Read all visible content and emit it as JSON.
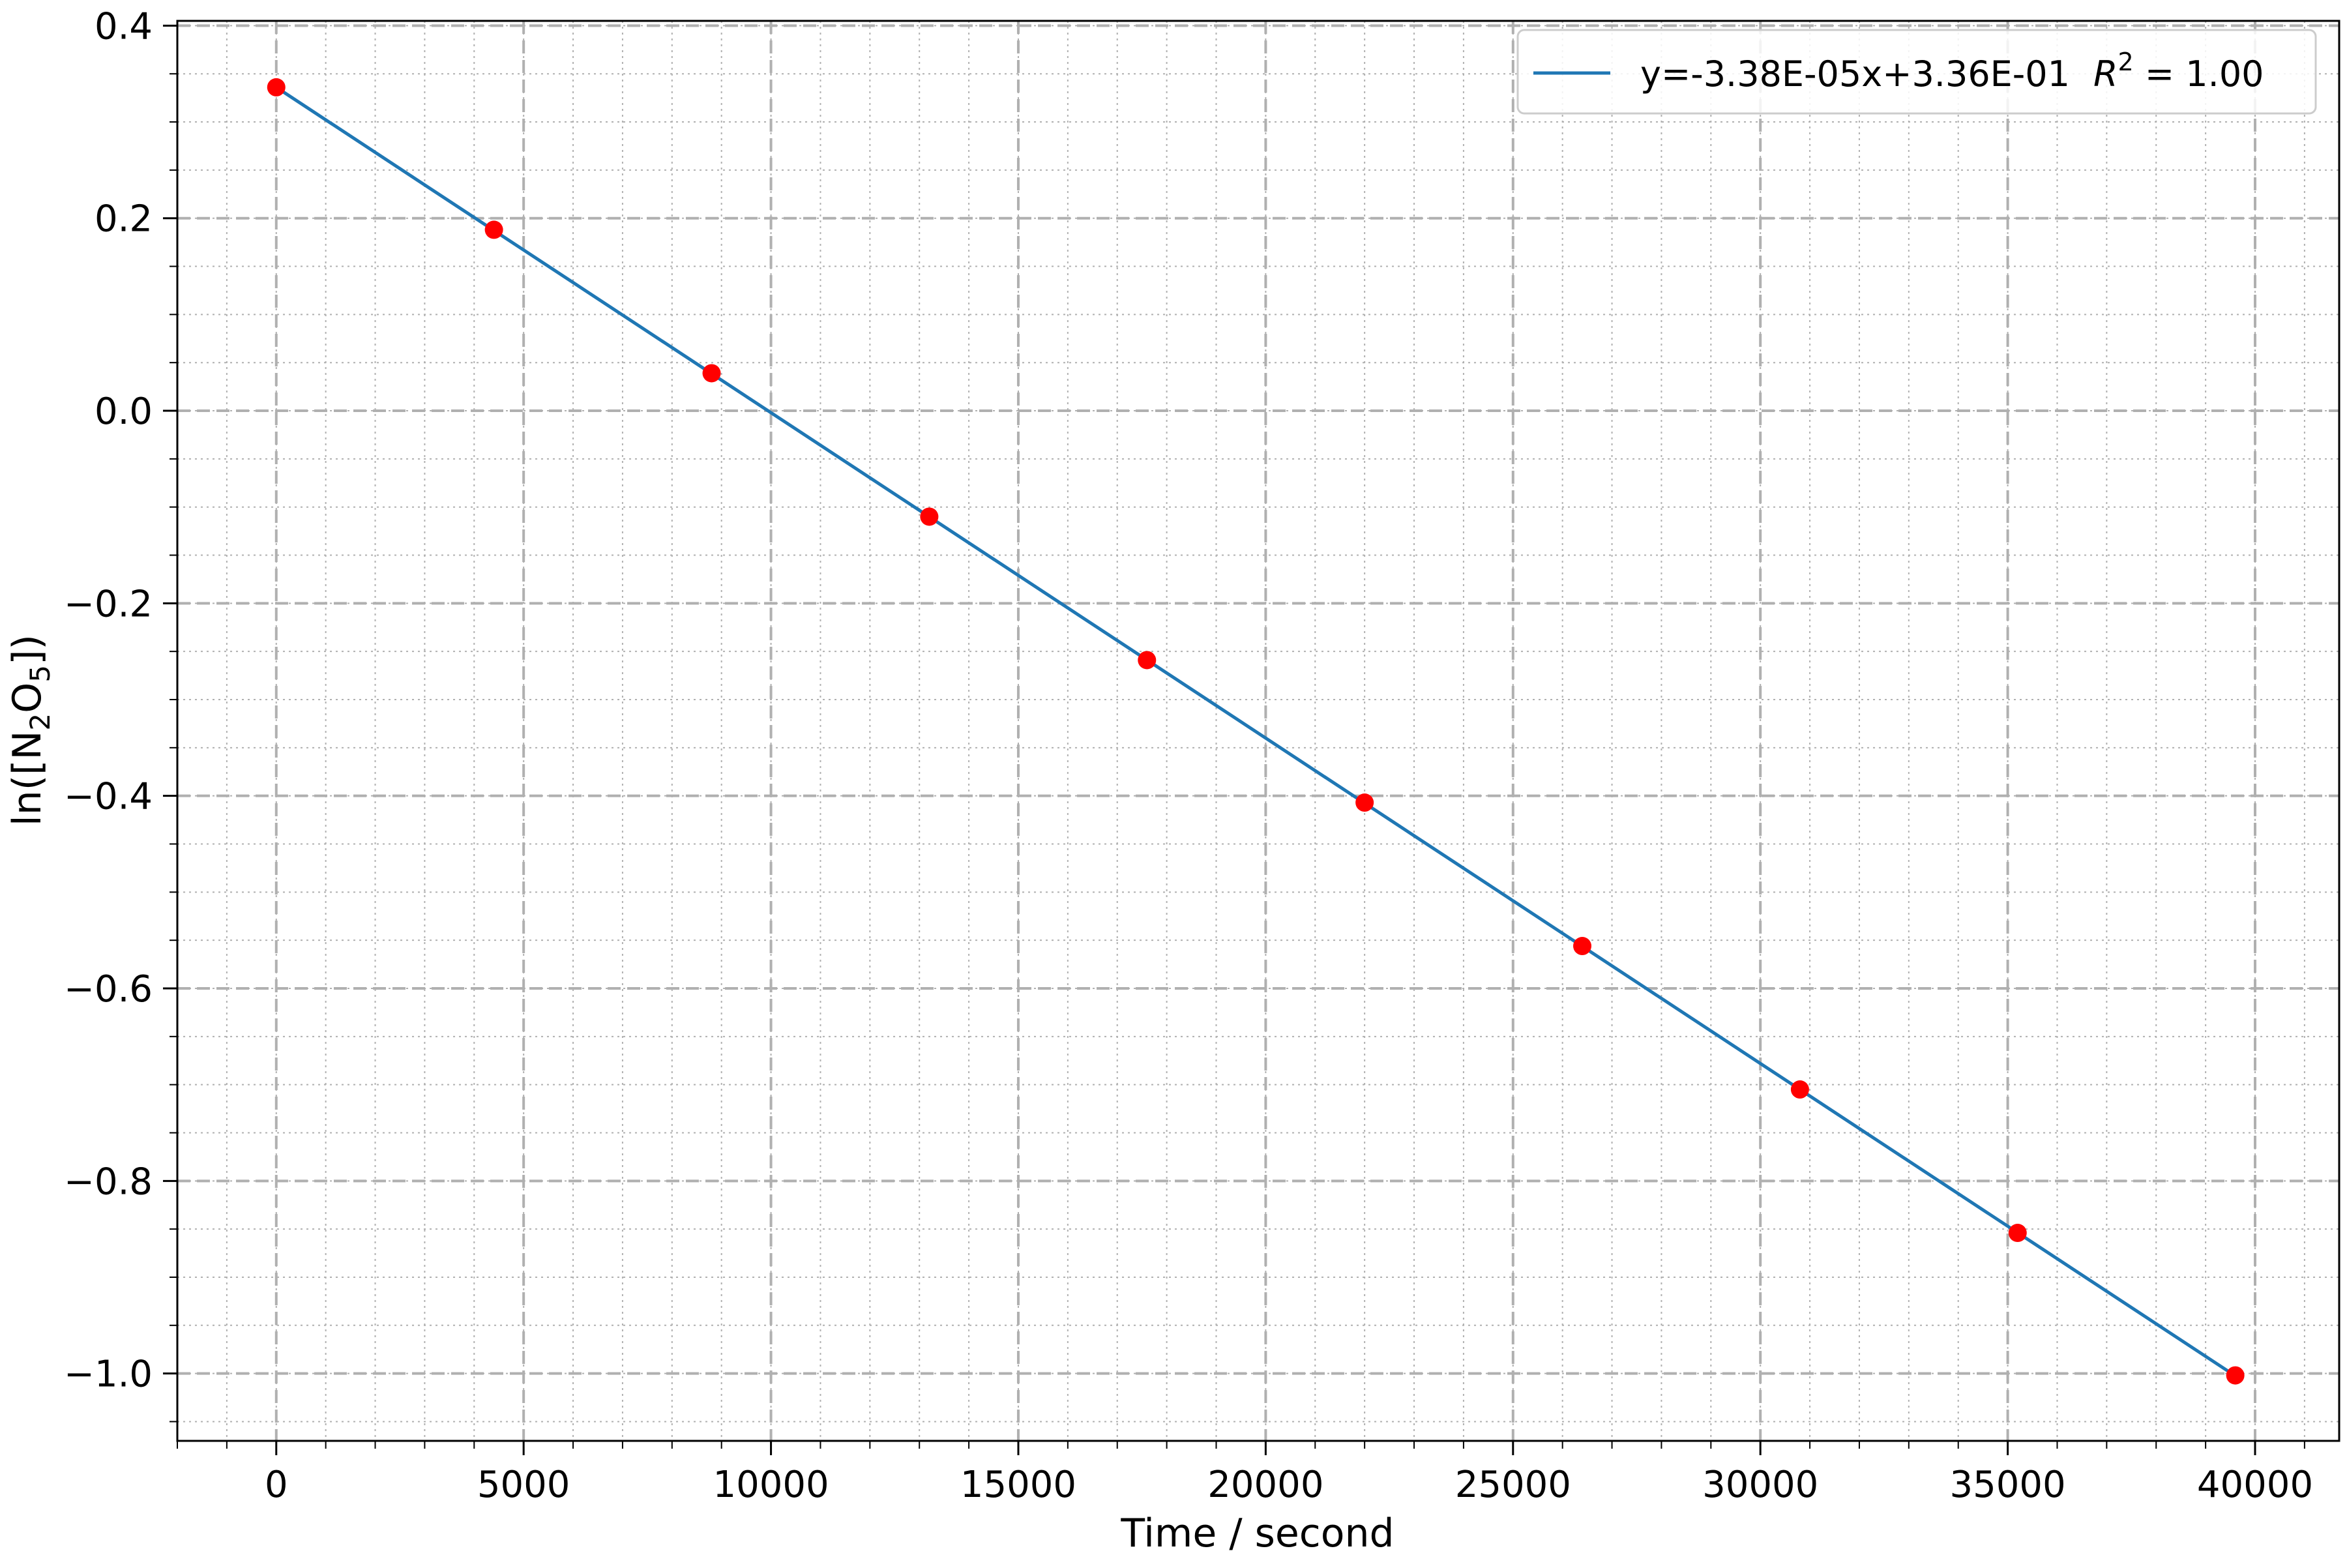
{
  "chart_data": {
    "type": "scatter",
    "title": "",
    "xlabel": "Time / second",
    "ylabel": "ln([N₂O₅])",
    "xlim": [
      -2000,
      41700
    ],
    "ylim": [
      -1.07,
      0.405
    ],
    "x_ticks": [
      0,
      5000,
      10000,
      15000,
      20000,
      25000,
      30000,
      35000,
      40000
    ],
    "y_ticks": [
      0.4,
      0.2,
      0.0,
      -0.2,
      -0.4,
      -0.6,
      -0.8,
      -1.0
    ],
    "x_tick_labels": [
      "0",
      "5000",
      "10000",
      "15000",
      "20000",
      "25000",
      "30000",
      "35000",
      "40000"
    ],
    "y_tick_labels": [
      "0.4",
      "0.2",
      "0.0",
      "−0.2",
      "−0.4",
      "−0.6",
      "−0.8",
      "−1.0"
    ],
    "x_minor_step": 1000,
    "y_minor_step": 0.05,
    "grid": "major dashed, minor dotted",
    "legend_position": "top-right",
    "series": [
      {
        "kind": "points",
        "color": "#ff0000",
        "x": [
          0,
          4400,
          8800,
          13200,
          17600,
          22000,
          26400,
          30800,
          35200,
          39600
        ],
        "y": [
          0.336,
          0.188,
          0.039,
          -0.11,
          -0.259,
          -0.407,
          -0.556,
          -0.705,
          -0.854,
          -1.002
        ]
      },
      {
        "kind": "fit_line",
        "name": "y=-3.38E-05x+3.36E-01  R² = 1.00",
        "color": "#1f77b4",
        "slope": -3.38e-05,
        "intercept": 0.336,
        "x_range": [
          0,
          39600
        ]
      }
    ]
  },
  "legend": {
    "fit_label": "y=-3.38E-05x+3.36E-01",
    "r2_label": "R",
    "r2_exp": "2",
    "r2_value": " = 1.00"
  },
  "axis_text": {
    "xlabel": "Time / second",
    "ylabel_prefix": "ln([N",
    "ylabel_sub1": "2",
    "ylabel_mid": "O",
    "ylabel_sub2": "5",
    "ylabel_suffix": "])"
  }
}
